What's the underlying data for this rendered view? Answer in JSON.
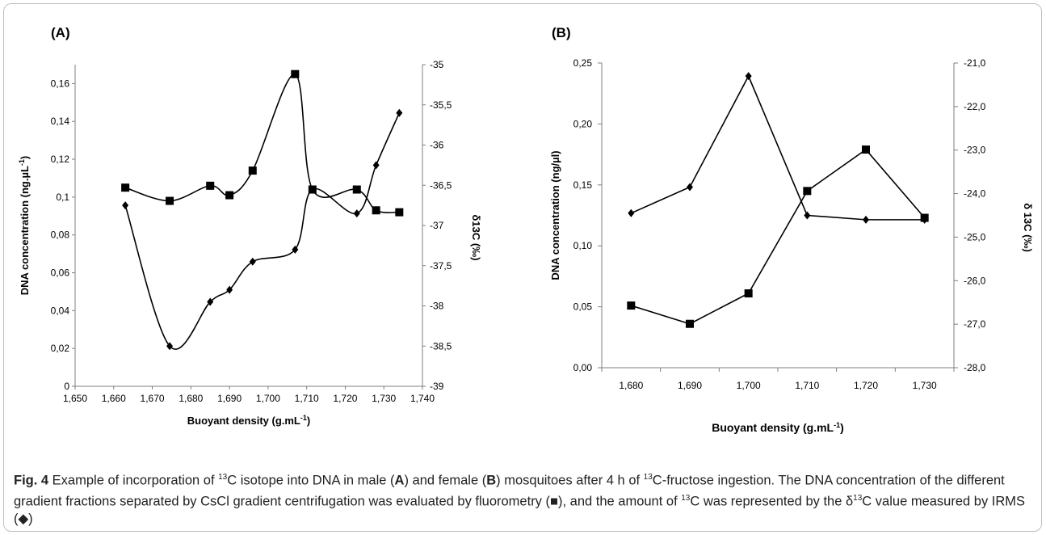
{
  "chart_data": [
    {
      "type": "line",
      "panel_label": "(A)",
      "xlabel": "Buoyant density (g.mL",
      "xlabel_sup": "-1",
      "xlabel_end": ")",
      "ylabel": "DNA concentration (ng.µL",
      "ylabel_sup": "-1",
      "ylabel_end": ")",
      "y2label": "δ13C (‰)",
      "xlim": [
        1.65,
        1.74
      ],
      "ylim": [
        0,
        0.17
      ],
      "y2lim": [
        -39,
        -35
      ],
      "x_ticks": [
        "1,650",
        "1,660",
        "1,670",
        "1,680",
        "1,690",
        "1,700",
        "1,710",
        "1,720",
        "1,730",
        "1,740"
      ],
      "y_ticks": [
        "0",
        "0,02",
        "0,04",
        "0,06",
        "0,08",
        "0,1",
        "0,12",
        "0,14",
        "0,16"
      ],
      "y2_ticks": [
        "-35",
        "-35,5",
        "-36",
        "-36,5",
        "-37",
        "-37,5",
        "-38",
        "-38,5",
        "-39"
      ],
      "smooth": true,
      "series": [
        {
          "marker": "square",
          "axis": "left",
          "x": [
            1.663,
            1.6745,
            1.685,
            1.69,
            1.696,
            1.707,
            1.7115,
            1.723,
            1.728,
            1.734
          ],
          "y": [
            0.105,
            0.098,
            0.106,
            0.101,
            0.114,
            0.165,
            0.104,
            0.104,
            0.093,
            0.092
          ]
        },
        {
          "marker": "diamond",
          "axis": "right",
          "x": [
            1.663,
            1.6745,
            1.685,
            1.69,
            1.696,
            1.707,
            1.7115,
            1.723,
            1.728,
            1.734
          ],
          "y": [
            -36.75,
            -38.5,
            -37.95,
            -37.8,
            -37.45,
            -37.3,
            -36.55,
            -36.85,
            -36.25,
            -35.6
          ]
        }
      ]
    },
    {
      "type": "line",
      "panel_label": "(B)",
      "xlabel": "Buoyant density (g.mL",
      "xlabel_sup": "-1",
      "xlabel_end": ")",
      "ylabel": "DNA concentration (ng/µl)",
      "y2label": "δ 13C  (‰)",
      "ylim": [
        0,
        0.25
      ],
      "y2lim": [
        -28,
        -21
      ],
      "categories": [
        "1,680",
        "1,690",
        "1,700",
        "1,710",
        "1,720",
        "1,730"
      ],
      "y_ticks": [
        "0,00",
        "0,05",
        "0,10",
        "0,15",
        "0,20",
        "0,25"
      ],
      "y2_ticks": [
        "-21,0",
        "-22,0",
        "-23,0",
        "-24,0",
        "-25,0",
        "-26,0",
        "-27,0",
        "-28,0"
      ],
      "smooth": false,
      "series": [
        {
          "marker": "square",
          "axis": "left",
          "values": [
            0.051,
            0.036,
            0.061,
            0.145,
            0.179,
            0.123
          ]
        },
        {
          "marker": "diamond",
          "axis": "right",
          "values": [
            -24.45,
            -23.85,
            -21.3,
            -24.5,
            -24.6,
            -24.6
          ]
        }
      ]
    }
  ],
  "caption": {
    "fig_label": "Fig. 4",
    "parts": [
      {
        "t": "  Example of incorporation of "
      },
      {
        "t": "13",
        "sup": true
      },
      {
        "t": "C isotope into DNA in male ("
      },
      {
        "t": "A",
        "b": true
      },
      {
        "t": ") and female ("
      },
      {
        "t": "B",
        "b": true
      },
      {
        "t": ") mosquitoes after 4 h of "
      },
      {
        "t": "13",
        "sup": true
      },
      {
        "t": "C-fructose ingestion. The DNA concentration of the different gradient fractions separated by CsCl gradient centrifugation was evaluated by fluorometry (■), and the amount of "
      },
      {
        "t": "13",
        "sup": true
      },
      {
        "t": "C was represented by the δ"
      },
      {
        "t": "13",
        "sup": true
      },
      {
        "t": "C value measured by IRMS (◆)"
      }
    ]
  }
}
